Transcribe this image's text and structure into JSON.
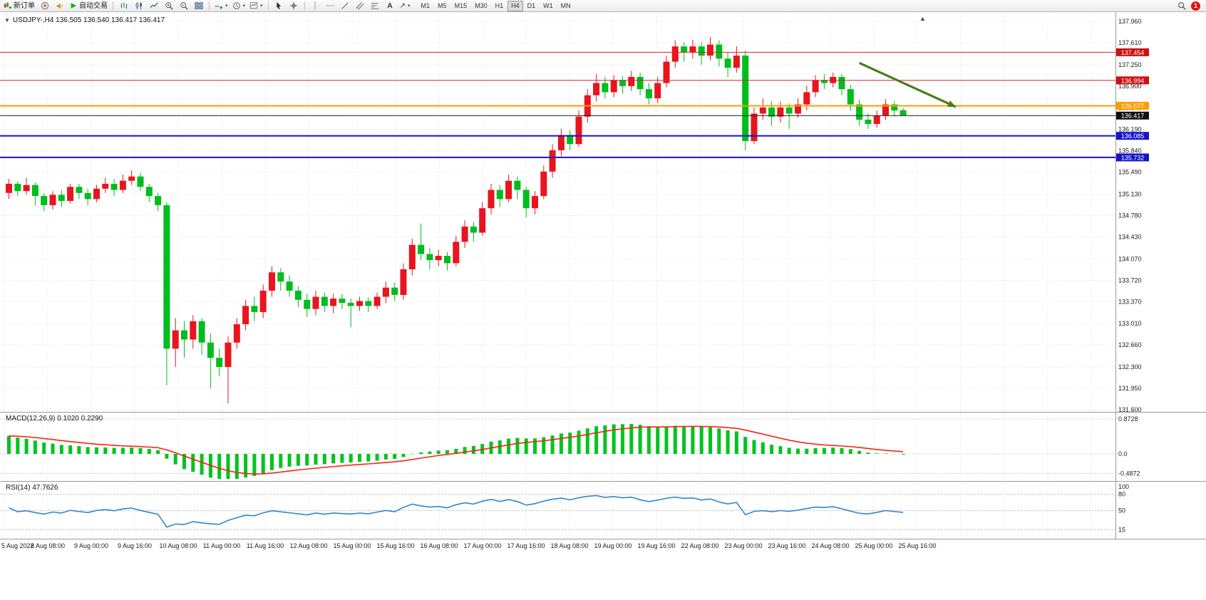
{
  "window": {
    "badge_count": "1"
  },
  "toolbar": {
    "new_order": "新订单",
    "autotrade": "自动交易",
    "timeframes": [
      "M1",
      "M5",
      "M15",
      "M30",
      "H1",
      "H4",
      "D1",
      "W1",
      "MN"
    ],
    "active_timeframe": "H4"
  },
  "chart": {
    "title": "USDJPY-,H4 136.505 136.540 136.417 136.417",
    "symbol": "USDJPY-",
    "period": "H4",
    "open": "136.505",
    "high": "136.540",
    "low": "136.417",
    "close": "136.417"
  },
  "indicators": {
    "macd_name": "MACD(12,26,9)",
    "macd_values": "0.1020 0.2290",
    "rsi_name": "RSI(14)",
    "rsi_value": "47.7626"
  },
  "chart_data": {
    "type": "candlestick",
    "symbol": "USDJPY-",
    "period": "H4",
    "colors": {
      "up": "#e8141e",
      "down": "#00bd1e",
      "macd_hist": "#00c41e",
      "macd_signal": "#ff2012",
      "rsi_line": "#2f86d0",
      "grid": "#e2e2e2",
      "axis_text": "#1c1c1c",
      "separator": "#9b9b9b"
    },
    "price_ticks": [
      137.96,
      137.61,
      137.25,
      136.9,
      136.54,
      136.19,
      135.84,
      135.49,
      135.13,
      134.78,
      134.43,
      134.07,
      133.72,
      133.37,
      133.01,
      132.66,
      132.3,
      131.95,
      131.6
    ],
    "candles": [
      [
        135.15,
        135.38,
        135.05,
        135.3
      ],
      [
        135.3,
        135.34,
        135.1,
        135.18
      ],
      [
        135.18,
        135.4,
        135.12,
        135.28
      ],
      [
        135.28,
        135.32,
        134.95,
        135.1
      ],
      [
        135.1,
        135.15,
        134.85,
        134.95
      ],
      [
        134.95,
        135.18,
        134.88,
        135.12
      ],
      [
        135.12,
        135.2,
        134.92,
        135.02
      ],
      [
        135.02,
        135.3,
        134.98,
        135.25
      ],
      [
        135.25,
        135.3,
        135.05,
        135.15
      ],
      [
        135.15,
        135.22,
        134.95,
        135.05
      ],
      [
        135.05,
        135.28,
        135.0,
        135.22
      ],
      [
        135.22,
        135.4,
        135.15,
        135.3
      ],
      [
        135.3,
        135.38,
        135.1,
        135.2
      ],
      [
        135.2,
        135.45,
        135.15,
        135.35
      ],
      [
        135.35,
        135.52,
        135.28,
        135.42
      ],
      [
        135.42,
        135.48,
        135.18,
        135.25
      ],
      [
        135.25,
        135.3,
        135.0,
        135.1
      ],
      [
        135.1,
        135.15,
        134.85,
        134.95
      ],
      [
        134.95,
        135.0,
        132.0,
        132.6
      ],
      [
        132.6,
        133.1,
        132.3,
        132.9
      ],
      [
        132.9,
        133.05,
        132.45,
        132.75
      ],
      [
        132.75,
        133.15,
        132.6,
        133.05
      ],
      [
        133.05,
        133.1,
        132.5,
        132.7
      ],
      [
        132.7,
        132.85,
        131.95,
        132.45
      ],
      [
        132.45,
        132.6,
        132.15,
        132.3
      ],
      [
        132.3,
        132.8,
        131.7,
        132.7
      ],
      [
        132.7,
        133.1,
        132.6,
        133.0
      ],
      [
        133.0,
        133.4,
        132.9,
        133.3
      ],
      [
        133.3,
        133.45,
        133.05,
        133.2
      ],
      [
        133.2,
        133.65,
        133.1,
        133.55
      ],
      [
        133.55,
        133.95,
        133.45,
        133.85
      ],
      [
        133.85,
        133.92,
        133.55,
        133.7
      ],
      [
        133.7,
        133.8,
        133.45,
        133.55
      ],
      [
        133.55,
        133.62,
        133.28,
        133.4
      ],
      [
        133.4,
        133.5,
        133.12,
        133.25
      ],
      [
        133.25,
        133.55,
        133.15,
        133.45
      ],
      [
        133.45,
        133.52,
        133.2,
        133.3
      ],
      [
        133.3,
        133.5,
        133.18,
        133.42
      ],
      [
        133.42,
        133.5,
        133.25,
        133.35
      ],
      [
        133.35,
        133.42,
        132.95,
        133.3
      ],
      [
        133.3,
        133.45,
        133.22,
        133.38
      ],
      [
        133.38,
        133.44,
        133.2,
        133.3
      ],
      [
        133.3,
        133.52,
        133.25,
        133.45
      ],
      [
        133.45,
        133.7,
        133.35,
        133.6
      ],
      [
        133.6,
        133.68,
        133.38,
        133.48
      ],
      [
        133.48,
        134.0,
        133.4,
        133.9
      ],
      [
        133.9,
        134.4,
        133.8,
        134.3
      ],
      [
        134.3,
        134.65,
        134.05,
        134.15
      ],
      [
        134.15,
        134.25,
        133.9,
        134.05
      ],
      [
        134.05,
        134.22,
        133.95,
        134.12
      ],
      [
        134.12,
        134.18,
        133.88,
        134.0
      ],
      [
        134.0,
        134.45,
        133.95,
        134.35
      ],
      [
        134.35,
        134.7,
        134.25,
        134.6
      ],
      [
        134.6,
        134.68,
        134.35,
        134.5
      ],
      [
        134.5,
        135.0,
        134.45,
        134.9
      ],
      [
        134.9,
        135.3,
        134.8,
        135.2
      ],
      [
        135.2,
        135.28,
        134.92,
        135.05
      ],
      [
        135.05,
        135.45,
        135.0,
        135.35
      ],
      [
        135.35,
        135.42,
        135.05,
        135.2
      ],
      [
        135.2,
        135.25,
        134.75,
        134.9
      ],
      [
        134.9,
        135.18,
        134.8,
        135.1
      ],
      [
        135.1,
        135.6,
        135.05,
        135.5
      ],
      [
        135.5,
        135.95,
        135.4,
        135.85
      ],
      [
        135.85,
        136.2,
        135.75,
        136.1
      ],
      [
        136.1,
        136.18,
        135.85,
        135.95
      ],
      [
        135.95,
        136.5,
        135.9,
        136.4
      ],
      [
        136.4,
        136.85,
        136.3,
        136.75
      ],
      [
        136.75,
        137.1,
        136.65,
        136.95
      ],
      [
        136.95,
        137.05,
        136.7,
        136.8
      ],
      [
        136.8,
        137.08,
        136.72,
        137.0
      ],
      [
        137.0,
        137.06,
        136.78,
        136.9
      ],
      [
        136.9,
        137.15,
        136.82,
        137.05
      ],
      [
        137.05,
        137.12,
        136.75,
        136.85
      ],
      [
        136.85,
        136.95,
        136.6,
        136.7
      ],
      [
        136.7,
        137.05,
        136.62,
        136.95
      ],
      [
        136.95,
        137.4,
        136.88,
        137.3
      ],
      [
        137.3,
        137.65,
        137.2,
        137.55
      ],
      [
        137.55,
        137.62,
        137.3,
        137.45
      ],
      [
        137.45,
        137.66,
        137.35,
        137.55
      ],
      [
        137.55,
        137.62,
        137.25,
        137.4
      ],
      [
        137.4,
        137.7,
        137.32,
        137.58
      ],
      [
        137.58,
        137.65,
        137.22,
        137.35
      ],
      [
        137.35,
        137.45,
        137.05,
        137.2
      ],
      [
        137.2,
        137.55,
        137.12,
        137.4
      ],
      [
        137.4,
        137.48,
        135.85,
        136.0
      ],
      [
        136.0,
        136.55,
        135.95,
        136.45
      ],
      [
        136.45,
        136.7,
        136.35,
        136.55
      ],
      [
        136.55,
        136.65,
        136.25,
        136.4
      ],
      [
        136.4,
        136.65,
        136.3,
        136.55
      ],
      [
        136.55,
        136.62,
        136.2,
        136.45
      ],
      [
        136.45,
        136.7,
        136.38,
        136.6
      ],
      [
        136.6,
        136.9,
        136.5,
        136.8
      ],
      [
        136.8,
        137.08,
        136.72,
        137.0
      ],
      [
        137.0,
        137.1,
        136.85,
        136.95
      ],
      [
        136.95,
        137.12,
        136.88,
        137.05
      ],
      [
        137.05,
        137.1,
        136.75,
        136.85
      ],
      [
        136.85,
        136.92,
        136.5,
        136.6
      ],
      [
        136.6,
        136.68,
        136.25,
        136.35
      ],
      [
        136.35,
        136.45,
        136.2,
        136.28
      ],
      [
        136.28,
        136.5,
        136.22,
        136.42
      ],
      [
        136.42,
        136.68,
        136.35,
        136.6
      ],
      [
        136.6,
        136.66,
        136.4,
        136.5
      ],
      [
        136.505,
        136.54,
        136.417,
        136.417
      ]
    ],
    "hlines": [
      {
        "price": 137.454,
        "color": "#dd2222",
        "width": 1,
        "label": "137.454",
        "label_bg": "#cc1111"
      },
      {
        "price": 136.994,
        "color": "#dd2222",
        "width": 1,
        "label": "136.994",
        "label_bg": "#cc1111"
      },
      {
        "price": 136.577,
        "color": "#ff9c00",
        "width": 2,
        "label": "136.577",
        "label_bg": "#ff9c00"
      },
      {
        "price": 136.085,
        "color": "#1515c8",
        "width": 2,
        "label": "136.085",
        "label_bg": "#1515c8"
      },
      {
        "price": 135.732,
        "color": "#1515c8",
        "width": 2,
        "label": "135.732",
        "label_bg": "#1515c8"
      }
    ],
    "current_price": {
      "value": 136.417,
      "label": "136.417",
      "line_color": "#1a1a1a",
      "label_bg": "#111111"
    },
    "trend_arrow": {
      "from_bar": 97,
      "from_price": 137.28,
      "to_bar": 108,
      "to_price": 136.56,
      "color": "#4a7d19"
    },
    "time_labels": [
      "5 Aug 2022",
      "8 Aug 08:00",
      "9 Aug 00:00",
      "9 Aug 16:00",
      "10 Aug 08:00",
      "11 Aug 00:00",
      "11 Aug 16:00",
      "12 Aug 08:00",
      "15 Aug 00:00",
      "15 Aug 16:00",
      "16 Aug 08:00",
      "17 Aug 00:00",
      "17 Aug 16:00",
      "18 Aug 08:00",
      "19 Aug 00:00",
      "19 Aug 16:00",
      "22 Aug 08:00",
      "23 Aug 00:00",
      "23 Aug 16:00",
      "24 Aug 08:00",
      "25 Aug 00:00",
      "25 Aug 16:00"
    ],
    "macd": {
      "params": [
        12,
        26,
        9
      ],
      "axis_max": 0.8728,
      "axis_min": -0.4872,
      "axis_labels": [
        "0.8728",
        "0.0",
        "-0.4872"
      ]
    },
    "rsi": {
      "period": 14,
      "axis": [
        [
          100,
          "100"
        ],
        [
          80,
          "80"
        ],
        [
          50,
          "50"
        ],
        [
          15,
          "15"
        ]
      ],
      "levels": [
        80,
        50,
        15
      ]
    }
  }
}
